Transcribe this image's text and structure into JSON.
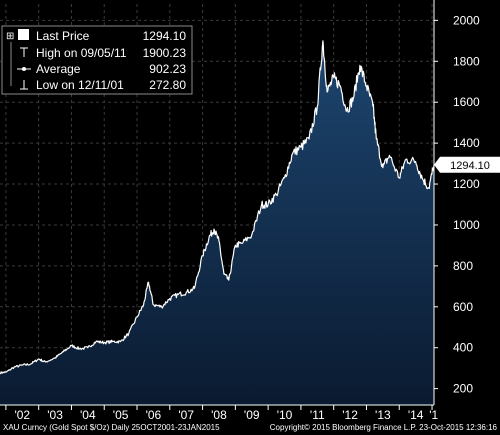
{
  "chart_data": {
    "type": "area",
    "title": "",
    "xlabel": "",
    "ylabel": "",
    "ylim": [
      120,
      2080
    ],
    "xlim": [
      2001.82,
      2015.06
    ],
    "yticks": [
      200,
      400,
      600,
      800,
      1000,
      1200,
      1400,
      1600,
      1800,
      2000
    ],
    "xtick_labels": [
      {
        "label": "'02",
        "x": 2002.5
      },
      {
        "label": "'03",
        "x": 2003.5
      },
      {
        "label": "'04",
        "x": 2004.5
      },
      {
        "label": "'05",
        "x": 2005.5
      },
      {
        "label": "'06",
        "x": 2006.5
      },
      {
        "label": "'07",
        "x": 2007.5
      },
      {
        "label": "'08",
        "x": 2008.5
      },
      {
        "label": "'09",
        "x": 2009.5
      },
      {
        "label": "'10",
        "x": 2010.5
      },
      {
        "label": "'11",
        "x": 2011.5
      },
      {
        "label": "'12",
        "x": 2012.5
      },
      {
        "label": "'13",
        "x": 2013.5
      },
      {
        "label": "'14",
        "x": 2014.5
      },
      {
        "label": "'1",
        "x": 2015.05
      }
    ],
    "year_boundaries": [
      2002,
      2003,
      2004,
      2005,
      2006,
      2007,
      2008,
      2009,
      2010,
      2011,
      2012,
      2013,
      2014,
      2015
    ],
    "grid": true,
    "legend_placement": "top-left",
    "colors": {
      "background": "#000000",
      "line": "#ffffff",
      "area_top": "#1d4670",
      "area_bottom": "#0a1a30",
      "grid": "#3a3a3a",
      "legend_bg": "#000000",
      "last_label_bg": "#ffffff"
    },
    "series": [
      {
        "name": "Last Price",
        "x": [
          2001.82,
          2002.0,
          2002.25,
          2002.5,
          2002.75,
          2003.0,
          2003.2,
          2003.5,
          2003.75,
          2004.0,
          2004.25,
          2004.5,
          2004.75,
          2005.0,
          2005.25,
          2005.5,
          2005.75,
          2006.0,
          2006.2,
          2006.35,
          2006.5,
          2006.75,
          2007.0,
          2007.25,
          2007.5,
          2007.75,
          2008.0,
          2008.2,
          2008.35,
          2008.5,
          2008.65,
          2008.8,
          2009.0,
          2009.2,
          2009.5,
          2009.8,
          2010.0,
          2010.25,
          2010.5,
          2010.75,
          2011.0,
          2011.25,
          2011.5,
          2011.67,
          2011.8,
          2012.0,
          2012.2,
          2012.4,
          2012.6,
          2012.8,
          2013.0,
          2013.2,
          2013.3,
          2013.5,
          2013.7,
          2014.0,
          2014.2,
          2014.5,
          2014.7,
          2014.9,
          2015.06
        ],
        "y": [
          278,
          280,
          305,
          315,
          320,
          345,
          330,
          350,
          380,
          410,
          395,
          400,
          430,
          425,
          430,
          430,
          470,
          550,
          610,
          720,
          610,
          600,
          640,
          660,
          670,
          690,
          850,
          940,
          980,
          920,
          760,
          730,
          900,
          910,
          950,
          1100,
          1100,
          1150,
          1230,
          1350,
          1380,
          1420,
          1580,
          1900,
          1650,
          1720,
          1680,
          1560,
          1620,
          1780,
          1680,
          1580,
          1420,
          1280,
          1340,
          1230,
          1320,
          1310,
          1230,
          1180,
          1294
        ]
      }
    ],
    "legend": [
      {
        "marker": "box",
        "label": "Last Price",
        "value": "1294.10"
      },
      {
        "marker": "high",
        "label": "High on 09/05/11",
        "value": "1900.23"
      },
      {
        "marker": "avg",
        "label": "Average",
        "value": "902.23"
      },
      {
        "marker": "low",
        "label": "Low on 12/11/01",
        "value": "272.80"
      }
    ],
    "last_price_label": "1294.10",
    "last_price_value": 1294.1,
    "footer": {
      "left": "XAU Curncy (Gold Spot  $/Oz)  Daily 25OCT2001-23JAN2015",
      "right": "Copyright© 2015 Bloomberg Finance L.P.    23-Oct-2015 12:36:16"
    }
  }
}
